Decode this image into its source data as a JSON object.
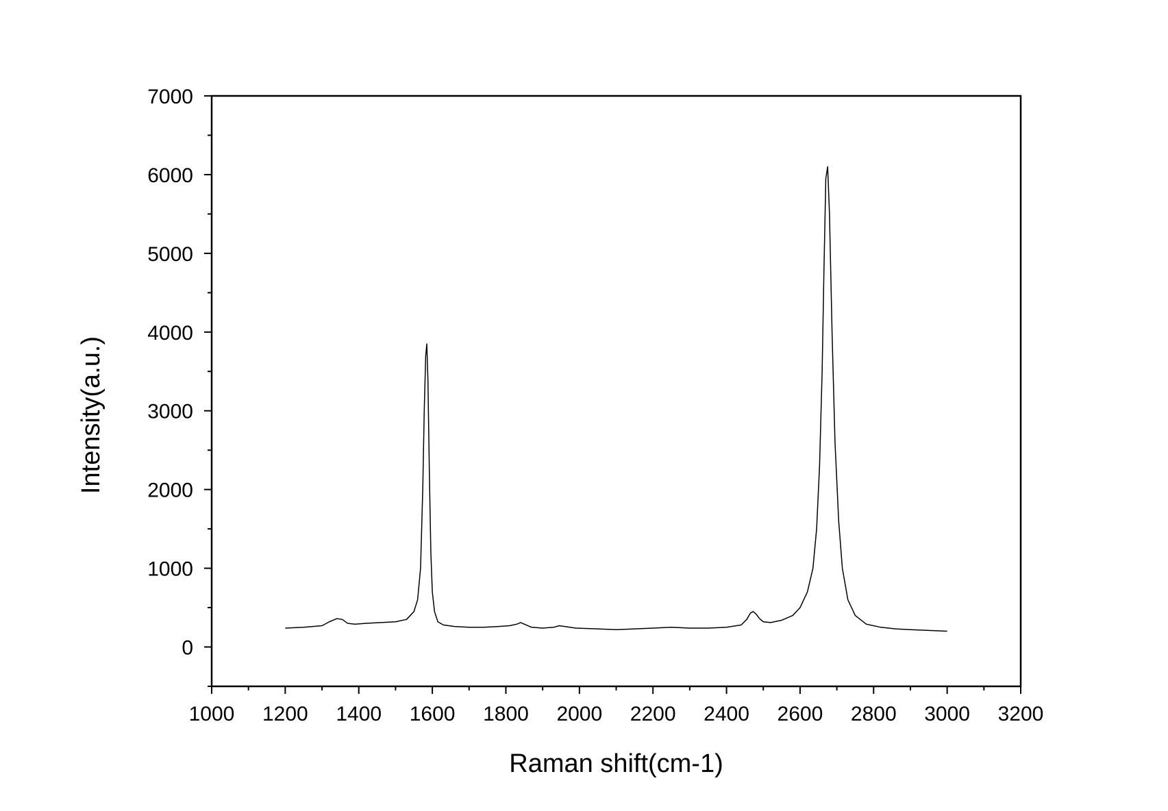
{
  "chart_data": {
    "type": "line",
    "title": "",
    "xlabel": "Raman shift(cm-1)",
    "ylabel": "Intensity(a.u.)",
    "xlim": [
      1000,
      3200
    ],
    "ylim": [
      -500,
      7000
    ],
    "x_ticks": [
      1000,
      1200,
      1400,
      1600,
      1800,
      2000,
      2200,
      2400,
      2600,
      2800,
      3000,
      3200
    ],
    "x_tick_labels": [
      "1000",
      "1200",
      "1400",
      "1600",
      "1800",
      "2000",
      "2200",
      "2400",
      "2600",
      "2800",
      "3000",
      "3200"
    ],
    "y_ticks": [
      0,
      1000,
      2000,
      3000,
      4000,
      5000,
      6000,
      7000
    ],
    "y_tick_labels": [
      "0",
      "1000",
      "2000",
      "3000",
      "4000",
      "5000",
      "6000",
      "7000"
    ],
    "grid": false,
    "line_color": "#000000",
    "series": [
      {
        "x": [
          1200,
          1250,
          1300,
          1320,
          1340,
          1355,
          1370,
          1390,
          1420,
          1460,
          1500,
          1530,
          1550,
          1560,
          1568,
          1574,
          1578,
          1582,
          1585,
          1588,
          1592,
          1596,
          1600,
          1606,
          1615,
          1630,
          1660,
          1700,
          1740,
          1780,
          1810,
          1830,
          1840,
          1850,
          1870,
          1900,
          1930,
          1945,
          1960,
          1990,
          2050,
          2100,
          2150,
          2200,
          2250,
          2300,
          2350,
          2400,
          2440,
          2455,
          2465,
          2472,
          2480,
          2490,
          2500,
          2520,
          2550,
          2580,
          2600,
          2620,
          2635,
          2645,
          2653,
          2660,
          2665,
          2670,
          2675,
          2680,
          2687,
          2695,
          2705,
          2715,
          2730,
          2750,
          2780,
          2820,
          2860,
          2900,
          2950,
          3000
        ],
        "y": [
          240,
          250,
          270,
          320,
          360,
          350,
          300,
          290,
          300,
          310,
          320,
          350,
          450,
          600,
          1000,
          2000,
          3000,
          3700,
          3850,
          3400,
          2200,
          1200,
          700,
          450,
          320,
          280,
          260,
          250,
          250,
          260,
          270,
          290,
          310,
          290,
          250,
          240,
          250,
          270,
          260,
          240,
          230,
          220,
          230,
          240,
          250,
          240,
          240,
          250,
          280,
          350,
          430,
          450,
          420,
          360,
          320,
          310,
          340,
          400,
          500,
          700,
          1000,
          1500,
          2300,
          3500,
          4800,
          5950,
          6100,
          5500,
          4000,
          2600,
          1600,
          1000,
          600,
          400,
          290,
          250,
          230,
          220,
          210,
          200
        ]
      }
    ]
  }
}
